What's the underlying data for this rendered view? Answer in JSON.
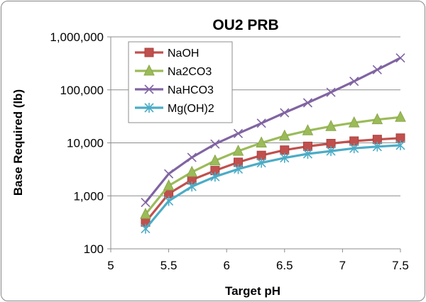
{
  "chart_data": {
    "type": "line",
    "title": "OU2 PRB",
    "xlabel": "Target pH",
    "ylabel": "Base Required (lb)",
    "xlim": [
      5,
      7.5
    ],
    "ylim": [
      100,
      1000000
    ],
    "yscale": "log",
    "x_ticks": [
      5,
      5.5,
      6,
      6.5,
      7,
      7.5
    ],
    "x_tick_labels": [
      "5",
      "5.5",
      "6",
      "6.5",
      "7",
      "7.5"
    ],
    "y_ticks": [
      100,
      1000,
      10000,
      100000,
      1000000
    ],
    "y_tick_labels": [
      "100",
      "1,000",
      "10,000",
      "100,000",
      "1,000,000"
    ],
    "grid": "horizontal",
    "legend_position": "top-left",
    "x": [
      5.3,
      5.5,
      5.7,
      5.9,
      6.1,
      6.3,
      6.5,
      6.7,
      6.9,
      7.1,
      7.3,
      7.5
    ],
    "series": [
      {
        "name": "NaOH",
        "color": "#c0504d",
        "marker": "square",
        "values": [
          320,
          1100,
          2000,
          3000,
          4300,
          5800,
          7300,
          8600,
          9700,
          10800,
          11600,
          12300
        ]
      },
      {
        "name": "Na2CO3",
        "color": "#9bbb59",
        "marker": "triangle",
        "values": [
          450,
          1550,
          2800,
          4600,
          7000,
          10000,
          13500,
          17000,
          20500,
          24000,
          27500,
          30500
        ]
      },
      {
        "name": "NaHCO3",
        "color": "#8064a2",
        "marker": "x",
        "values": [
          750,
          2600,
          5300,
          9500,
          15000,
          23500,
          37000,
          57000,
          90000,
          145000,
          240000,
          400000
        ]
      },
      {
        "name": "Mg(OH)2",
        "color": "#4bacc6",
        "marker": "star",
        "values": [
          240,
          800,
          1500,
          2300,
          3200,
          4200,
          5200,
          6200,
          7000,
          7900,
          8500,
          9000
        ]
      }
    ]
  }
}
